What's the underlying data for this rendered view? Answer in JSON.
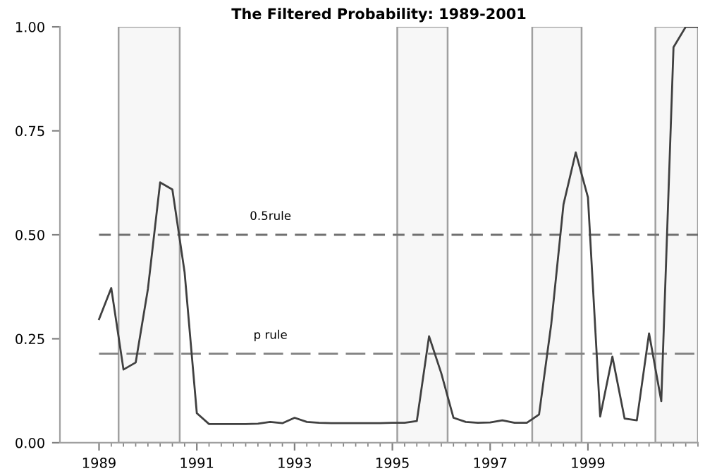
{
  "chart_data": {
    "type": "line",
    "title": "The Filtered Probability: 1989-2001",
    "x": [
      1989.0,
      1989.25,
      1989.5,
      1989.75,
      1990.0,
      1990.25,
      1990.5,
      1990.75,
      1991.0,
      1991.25,
      1991.5,
      1991.75,
      1992.0,
      1992.25,
      1992.5,
      1992.75,
      1993.0,
      1993.25,
      1993.5,
      1993.75,
      1994.0,
      1994.25,
      1994.5,
      1994.75,
      1995.0,
      1995.25,
      1995.5,
      1995.75,
      1996.0,
      1996.25,
      1996.5,
      1996.75,
      1997.0,
      1997.25,
      1997.5,
      1997.75,
      1998.0,
      1998.25,
      1998.5,
      1998.75,
      1999.0,
      1999.25,
      1999.5,
      1999.75,
      2000.0,
      2000.25,
      2000.5,
      2000.75,
      2001.0,
      2001.25
    ],
    "series": [
      {
        "color": "#404040",
        "values": [
          0.297,
          0.372,
          0.176,
          0.193,
          0.37,
          0.626,
          0.609,
          0.41,
          0.071,
          0.045,
          0.045,
          0.045,
          0.045,
          0.046,
          0.05,
          0.047,
          0.06,
          0.05,
          0.048,
          0.047,
          0.047,
          0.047,
          0.047,
          0.047,
          0.048,
          0.048,
          0.052,
          0.256,
          0.167,
          0.06,
          0.05,
          0.048,
          0.049,
          0.054,
          0.048,
          0.048,
          0.068,
          0.286,
          0.573,
          0.698,
          0.59,
          0.063,
          0.207,
          0.058,
          0.054,
          0.263,
          0.1,
          0.951,
          1.0,
          1.0
        ]
      }
    ],
    "xlim": [
      1988.2,
      2001.25
    ],
    "ylim": [
      0,
      1
    ],
    "xticks": [
      1989,
      1991,
      1993,
      1995,
      1997,
      1999
    ],
    "yticks": [
      {
        "value": 0,
        "label": "0.00"
      },
      {
        "value": 0.25,
        "label": "0.25"
      },
      {
        "value": 0.5,
        "label": "0.50"
      },
      {
        "value": 0.75,
        "label": "0.75"
      },
      {
        "value": 1,
        "label": "1.00"
      }
    ],
    "ref_lines": [
      {
        "axis": "y",
        "value": 0.5,
        "label": "0.5rule",
        "color": "#707070",
        "line_style": "dashed"
      },
      {
        "axis": "y",
        "value": 0.214,
        "label": "p rule",
        "color": "#808080",
        "line_style": "dashed"
      }
    ],
    "bands": [
      {
        "axis": "x",
        "from": 1989.4,
        "to": 1990.65,
        "color": "#f7f7f7"
      },
      {
        "axis": "x",
        "from": 1995.1,
        "to": 1996.13,
        "color": "#f7f7f7"
      },
      {
        "axis": "x",
        "from": 1997.86,
        "to": 1998.87,
        "color": "#f7f7f7"
      },
      {
        "axis": "x",
        "from": 2000.38,
        "to": 2001.25,
        "color": "#f7f7f7"
      }
    ],
    "grid": false,
    "legend": false
  }
}
